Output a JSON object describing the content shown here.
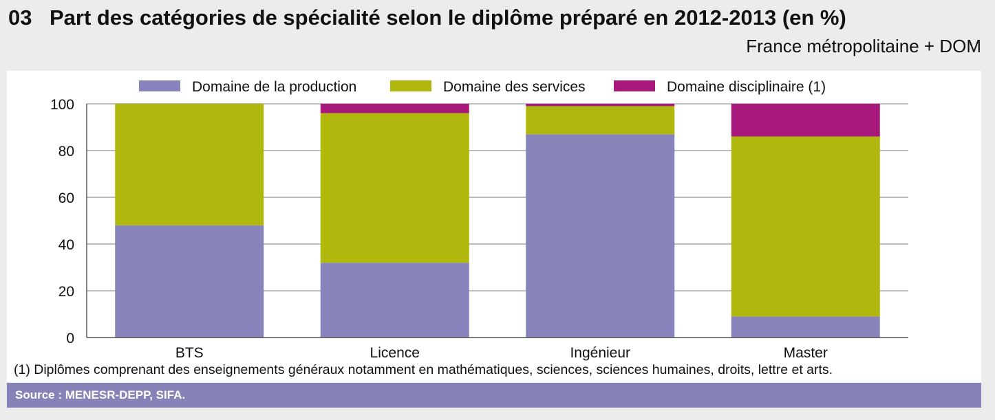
{
  "figure": {
    "number": "03",
    "title": "Part des catégories de spécialité selon le diplôme préparé en 2012-2013 (en %)",
    "scope": "France métropolitaine + DOM",
    "footnote": "(1) Diplômes comprenant des enseignements généraux notamment en mathématiques, sciences, sciences humaines, droits, lettre et arts.",
    "source": "Source : MENESR-DEPP, SIFA."
  },
  "chart_data": {
    "type": "bar",
    "stacked": true,
    "categories": [
      "BTS",
      "Licence",
      "Ingénieur",
      "Master"
    ],
    "series": [
      {
        "name": "Domaine de la production",
        "color": "#8784bb",
        "values": [
          48,
          32,
          87,
          9
        ]
      },
      {
        "name": "Domaine des services",
        "color": "#b1b80d",
        "values": [
          52,
          64,
          12,
          77
        ]
      },
      {
        "name": "Domaine disciplinaire (1)",
        "color": "#a8197c",
        "values": [
          0,
          4,
          1,
          14
        ]
      }
    ],
    "ylim": [
      0,
      100
    ],
    "yticks": [
      0,
      20,
      40,
      60,
      80,
      100
    ],
    "grid": true,
    "legend": "top"
  }
}
